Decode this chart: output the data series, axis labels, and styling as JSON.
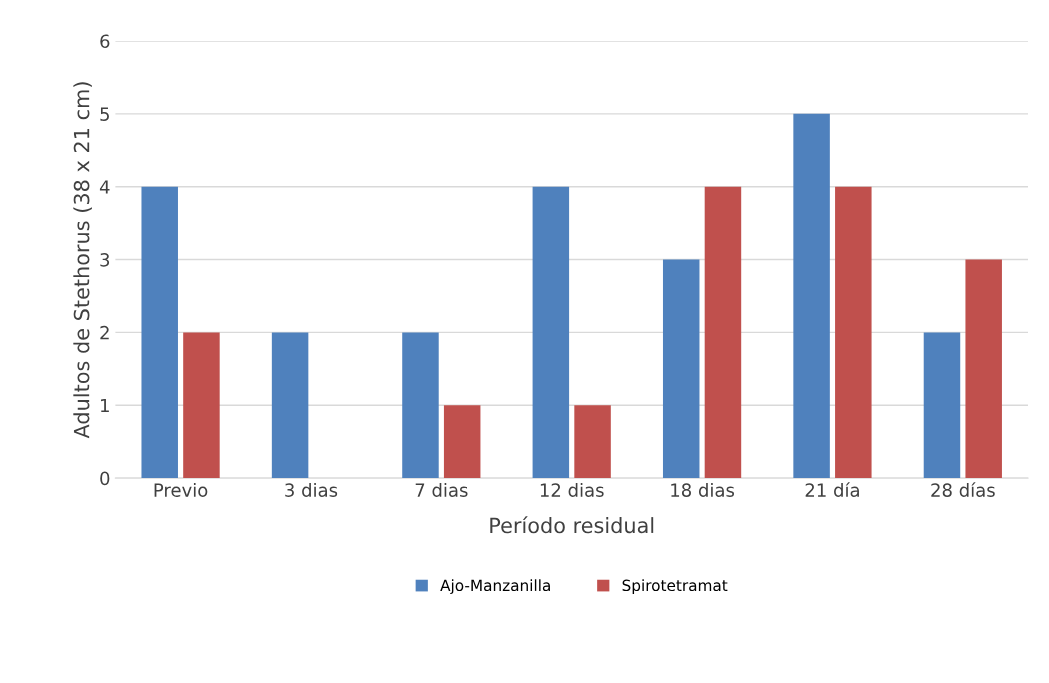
{
  "chart_data": {
    "type": "bar",
    "xlabel": "Período residual",
    "ylabel": "Adultos de Stethorus (38 x 21 cm)",
    "categories": [
      "Previo",
      "3 dias",
      "7 dias",
      "12 dias",
      "18 dias",
      "21 día",
      "28 días"
    ],
    "series": [
      {
        "name": "Ajo-Manzanilla",
        "color": "#4f81bd",
        "values": [
          4,
          2,
          2,
          4,
          3,
          5,
          2
        ]
      },
      {
        "name": "Spirotetramat",
        "color": "#c0504d",
        "values": [
          2,
          0,
          1,
          1,
          4,
          4,
          3
        ]
      }
    ],
    "ylim": [
      0,
      6
    ],
    "yticks": [
      0,
      1,
      2,
      3,
      4,
      5,
      6
    ],
    "grid": "y",
    "legend": "bottom"
  }
}
